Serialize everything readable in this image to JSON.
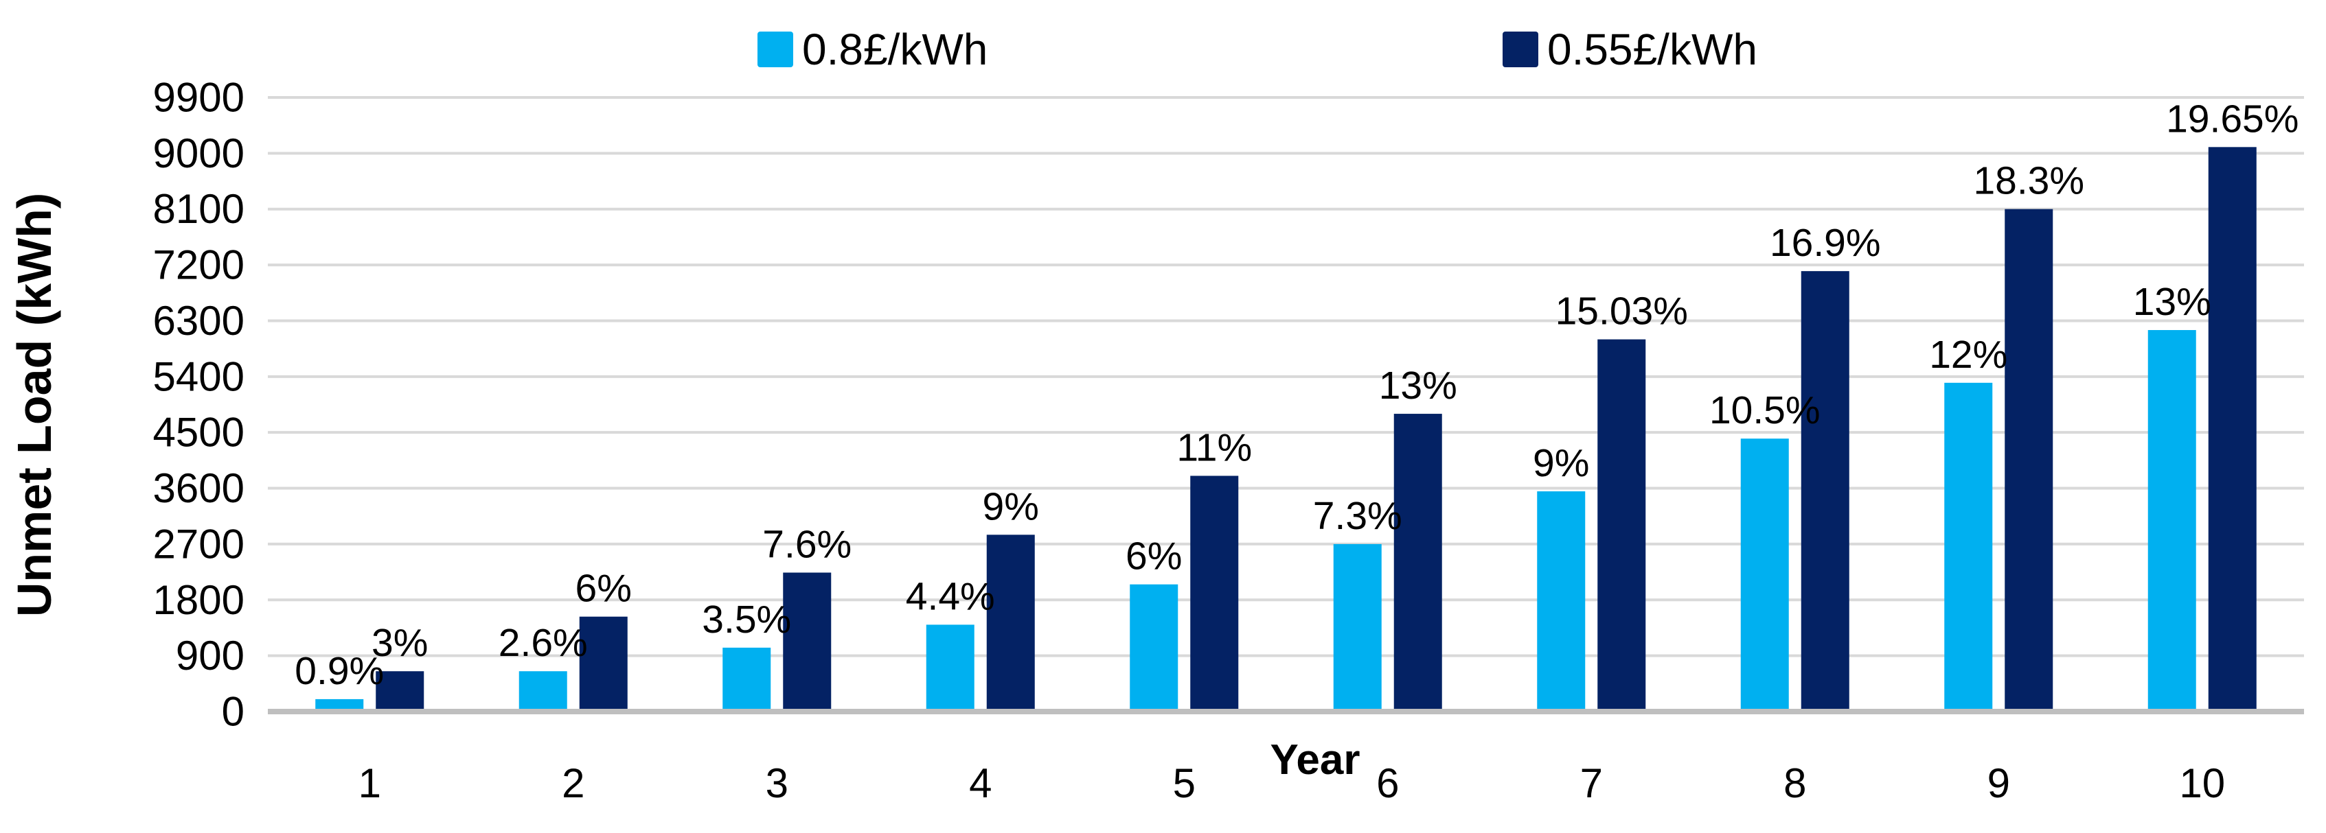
{
  "chart_data": {
    "type": "bar",
    "title": "",
    "xlabel": "Year",
    "ylabel": "Unmet Load (kWh)",
    "categories": [
      "1",
      "2",
      "3",
      "4",
      "5",
      "6",
      "7",
      "8",
      "9",
      "10"
    ],
    "series": [
      {
        "name": "0.8£/kWh",
        "color": "#00B0F0",
        "values": [
          200,
          650,
          1030,
          1400,
          2050,
          2700,
          3550,
          4400,
          5300,
          6150
        ],
        "labels": [
          "0.9%",
          "2.6%",
          "3.5%",
          "4.4%",
          "6%",
          "7.3%",
          "9%",
          "10.5%",
          "12%",
          "13%"
        ]
      },
      {
        "name": "0.55£/kWh",
        "color": "#042264",
        "values": [
          650,
          1530,
          2240,
          2850,
          3800,
          4800,
          6000,
          7100,
          8100,
          9100
        ],
        "labels": [
          "3%",
          "6%",
          "7.6%",
          "9%",
          "11%",
          "13%",
          "15.03%",
          "16.9%",
          "18.3%",
          "19.65%"
        ]
      }
    ],
    "y_ticks": [
      0,
      900,
      1800,
      2700,
      3600,
      4500,
      5400,
      6300,
      7200,
      8100,
      9000,
      9900
    ],
    "ylim": [
      0,
      9900
    ],
    "grid": true,
    "legend_position": "top",
    "gridline_color": "#D9D9D9",
    "baseline_color": "#BFBFBF",
    "text_color": "#000000"
  }
}
